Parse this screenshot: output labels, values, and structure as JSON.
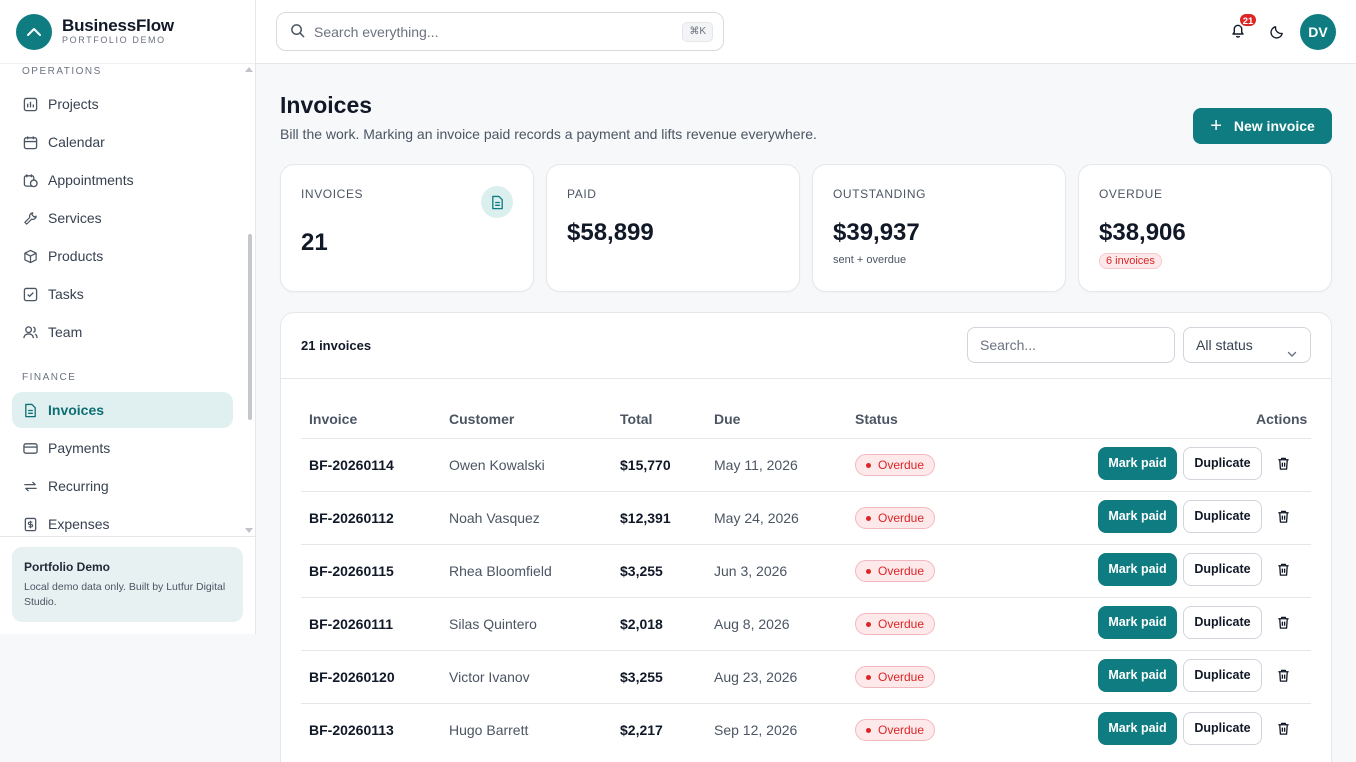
{
  "brand": {
    "name": "BusinessFlow",
    "subtitle": "PORTFOLIO DEMO"
  },
  "sidebar": {
    "sections": [
      {
        "title": "OPERATIONS",
        "items": [
          {
            "label": "Projects",
            "icon": "chart-board-icon"
          },
          {
            "label": "Calendar",
            "icon": "calendar-icon"
          },
          {
            "label": "Appointments",
            "icon": "calendar-clock-icon"
          },
          {
            "label": "Services",
            "icon": "wrench-icon"
          },
          {
            "label": "Products",
            "icon": "box-icon"
          },
          {
            "label": "Tasks",
            "icon": "checkbox-icon"
          },
          {
            "label": "Team",
            "icon": "users-icon"
          }
        ]
      },
      {
        "title": "FINANCE",
        "items": [
          {
            "label": "Invoices",
            "icon": "document-icon",
            "active": true
          },
          {
            "label": "Payments",
            "icon": "credit-card-icon"
          },
          {
            "label": "Recurring",
            "icon": "repeat-icon"
          },
          {
            "label": "Expenses",
            "icon": "receipt-icon"
          }
        ]
      }
    ],
    "promo": {
      "title": "Portfolio Demo",
      "text": "Local demo data only. Built by Lutfur Digital Studio."
    }
  },
  "topbar": {
    "search_placeholder": "Search everything...",
    "shortcut": "⌘K",
    "notification_count": "21",
    "avatar_initials": "DV"
  },
  "page": {
    "title": "Invoices",
    "subtitle": "Bill the work. Marking an invoice paid records a payment and lifts revenue everywhere.",
    "new_button": "New invoice"
  },
  "stats": {
    "invoices": {
      "label": "INVOICES",
      "value": "21"
    },
    "paid": {
      "label": "PAID",
      "value": "$58,899"
    },
    "outstanding": {
      "label": "OUTSTANDING",
      "value": "$39,937",
      "note": "sent + overdue"
    },
    "overdue": {
      "label": "OVERDUE",
      "value": "$38,906",
      "pill": "6 invoices"
    }
  },
  "table": {
    "count_label": "21 invoices",
    "search_placeholder": "Search...",
    "status_filter": "All status",
    "columns": {
      "invoice": "Invoice",
      "customer": "Customer",
      "total": "Total",
      "due": "Due",
      "status": "Status",
      "actions": "Actions"
    },
    "mark_paid_label": "Mark paid",
    "duplicate_label": "Duplicate",
    "rows": [
      {
        "invoice": "BF-20260114",
        "customer": "Owen Kowalski",
        "total": "$15,770",
        "due": "May 11, 2026",
        "status": "Overdue"
      },
      {
        "invoice": "BF-20260112",
        "customer": "Noah Vasquez",
        "total": "$12,391",
        "due": "May 24, 2026",
        "status": "Overdue"
      },
      {
        "invoice": "BF-20260115",
        "customer": "Rhea Bloomfield",
        "total": "$3,255",
        "due": "Jun 3, 2026",
        "status": "Overdue"
      },
      {
        "invoice": "BF-20260111",
        "customer": "Silas Quintero",
        "total": "$2,018",
        "due": "Aug 8, 2026",
        "status": "Overdue"
      },
      {
        "invoice": "BF-20260120",
        "customer": "Victor Ivanov",
        "total": "$3,255",
        "due": "Aug 23, 2026",
        "status": "Overdue"
      },
      {
        "invoice": "BF-20260113",
        "customer": "Hugo Barrett",
        "total": "$2,217",
        "due": "Sep 12, 2026",
        "status": "Overdue"
      }
    ]
  },
  "colors": {
    "accent": "#0e7c80",
    "danger": "#dc2626",
    "active_bg": "#e0f0f0"
  }
}
